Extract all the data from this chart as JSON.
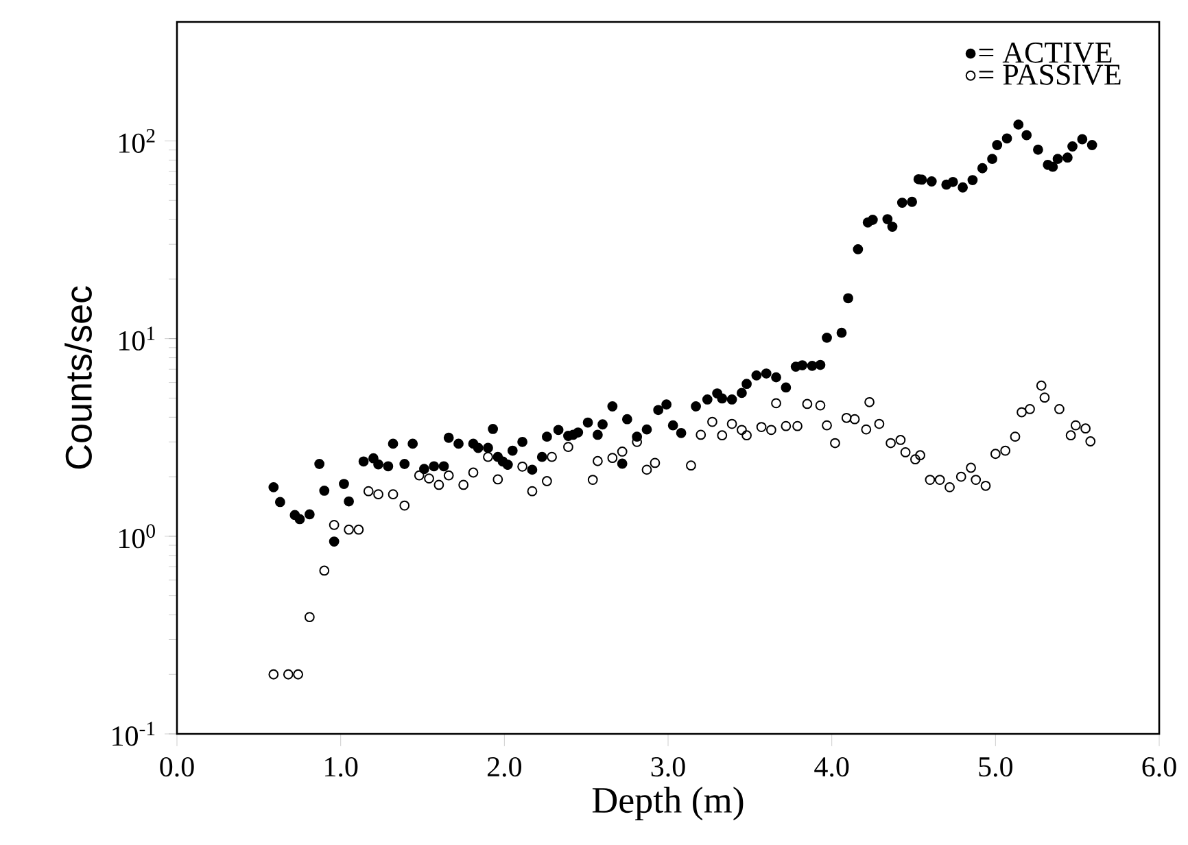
{
  "chart_data": {
    "type": "scatter",
    "xlabel": "Depth (m)",
    "ylabel": "Counts/sec",
    "xlim": [
      0,
      6
    ],
    "ylim": [
      0.1,
      400
    ],
    "log": "y",
    "marker": "circle",
    "legend": "top right",
    "grid": false,
    "xticks": [
      {
        "value": 0,
        "label": "0.0"
      },
      {
        "value": 1,
        "label": "1.0"
      },
      {
        "value": 2,
        "label": "2.0"
      },
      {
        "value": 3,
        "label": "3.0"
      },
      {
        "value": 4,
        "label": "4.0"
      },
      {
        "value": 5,
        "label": "5.0"
      },
      {
        "value": 6,
        "label": "6.0"
      }
    ],
    "yticks": [
      {
        "value": 0.1,
        "label": "10$^{-1}$"
      },
      {
        "value": 1,
        "label": "10$^{0}$"
      },
      {
        "value": 10,
        "label": "10$^{1}$"
      },
      {
        "value": 100,
        "label": "10$^{2}$"
      }
    ],
    "series": [
      {
        "name": "= ACTIVE",
        "color": "#000000",
        "x": [
          0.59,
          0.63,
          0.72,
          0.75,
          0.81,
          0.87,
          0.9,
          0.96,
          1.02,
          1.05,
          1.14,
          1.2,
          1.23,
          1.29,
          1.32,
          1.39,
          1.44,
          1.51,
          1.57,
          1.63,
          1.66,
          1.72,
          1.81,
          1.84,
          1.9,
          1.93,
          1.96,
          1.99,
          2.02,
          2.05,
          2.11,
          2.17,
          2.23,
          2.26,
          2.33,
          2.39,
          2.42,
          2.45,
          2.51,
          2.57,
          2.6,
          2.66,
          2.72,
          2.75,
          2.81,
          2.87,
          2.94,
          2.99,
          3.03,
          3.08,
          3.17,
          3.24,
          3.3,
          3.33,
          3.39,
          3.45,
          3.48,
          3.54,
          3.6,
          3.66,
          3.72,
          3.78,
          3.82,
          3.88,
          3.93,
          3.97,
          4.06,
          4.1,
          4.16,
          4.22,
          4.25,
          4.34,
          4.37,
          4.43,
          4.49,
          4.53,
          4.55,
          4.61,
          4.7,
          4.74,
          4.8,
          4.86,
          4.92,
          4.98,
          5.01,
          5.07,
          5.14,
          5.19,
          5.26,
          5.32,
          5.35,
          5.38,
          5.44,
          5.47,
          5.53,
          5.59
        ],
        "values": [
          1.77,
          1.49,
          1.28,
          1.22,
          1.29,
          2.32,
          1.7,
          0.94,
          1.84,
          1.5,
          2.39,
          2.48,
          2.31,
          2.26,
          2.94,
          2.32,
          2.94,
          2.19,
          2.26,
          2.26,
          3.15,
          2.94,
          2.94,
          2.8,
          2.8,
          3.49,
          2.52,
          2.39,
          2.3,
          2.71,
          3.0,
          2.17,
          2.52,
          3.19,
          3.45,
          3.22,
          3.26,
          3.35,
          3.76,
          3.26,
          3.68,
          4.54,
          2.33,
          3.91,
          3.19,
          3.47,
          4.35,
          4.64,
          3.64,
          3.33,
          4.54,
          4.92,
          5.28,
          4.98,
          4.92,
          5.31,
          5.9,
          6.51,
          6.66,
          6.37,
          5.66,
          7.21,
          7.33,
          7.28,
          7.36,
          10.1,
          10.7,
          16.0,
          28.3,
          38.7,
          39.9,
          40.2,
          36.8,
          48.7,
          49.2,
          64.0,
          63.7,
          62.4,
          60.1,
          62.0,
          58.2,
          63.4,
          72.8,
          81.1,
          95.3,
          103,
          121,
          107,
          90.3,
          75.7,
          74.0,
          81.1,
          82.4,
          93.8,
          102,
          95.3
        ]
      },
      {
        "name": "= PASSIVE",
        "color": "#000000",
        "x": [
          0.59,
          0.68,
          0.74,
          0.81,
          0.9,
          0.96,
          1.05,
          1.11,
          1.17,
          1.23,
          1.32,
          1.39,
          1.48,
          1.54,
          1.6,
          1.66,
          1.75,
          1.81,
          1.9,
          1.96,
          2.02,
          2.11,
          2.17,
          2.26,
          2.29,
          2.39,
          2.54,
          2.57,
          2.66,
          2.72,
          2.81,
          2.87,
          2.92,
          3.14,
          3.2,
          3.27,
          3.33,
          3.39,
          3.45,
          3.48,
          3.57,
          3.63,
          3.66,
          3.72,
          3.79,
          3.85,
          3.93,
          3.97,
          4.02,
          4.09,
          4.14,
          4.21,
          4.23,
          4.29,
          4.36,
          4.42,
          4.45,
          4.51,
          4.54,
          4.6,
          4.66,
          4.72,
          4.79,
          4.85,
          4.88,
          4.94,
          5.0,
          5.06,
          5.12,
          5.16,
          5.21,
          5.28,
          5.3,
          5.39,
          5.46,
          5.49,
          5.55,
          5.58
        ],
        "values": [
          0.2,
          0.2,
          0.2,
          0.39,
          0.67,
          1.14,
          1.08,
          1.08,
          1.69,
          1.63,
          1.63,
          1.43,
          2.03,
          1.96,
          1.82,
          2.03,
          1.82,
          2.1,
          2.52,
          1.94,
          2.3,
          2.25,
          1.69,
          1.9,
          2.52,
          2.83,
          1.93,
          2.4,
          2.49,
          2.68,
          3.0,
          2.17,
          2.35,
          2.28,
          3.26,
          3.79,
          3.24,
          3.7,
          3.45,
          3.24,
          3.57,
          3.45,
          4.71,
          3.61,
          3.61,
          4.67,
          4.59,
          3.64,
          2.96,
          3.97,
          3.91,
          3.47,
          4.77,
          3.7,
          2.96,
          3.07,
          2.66,
          2.45,
          2.57,
          1.93,
          1.93,
          1.77,
          2.0,
          2.22,
          1.93,
          1.8,
          2.61,
          2.71,
          3.19,
          4.24,
          4.4,
          5.78,
          5.03,
          4.4,
          3.24,
          3.64,
          3.51,
          3.02
        ]
      }
    ]
  }
}
